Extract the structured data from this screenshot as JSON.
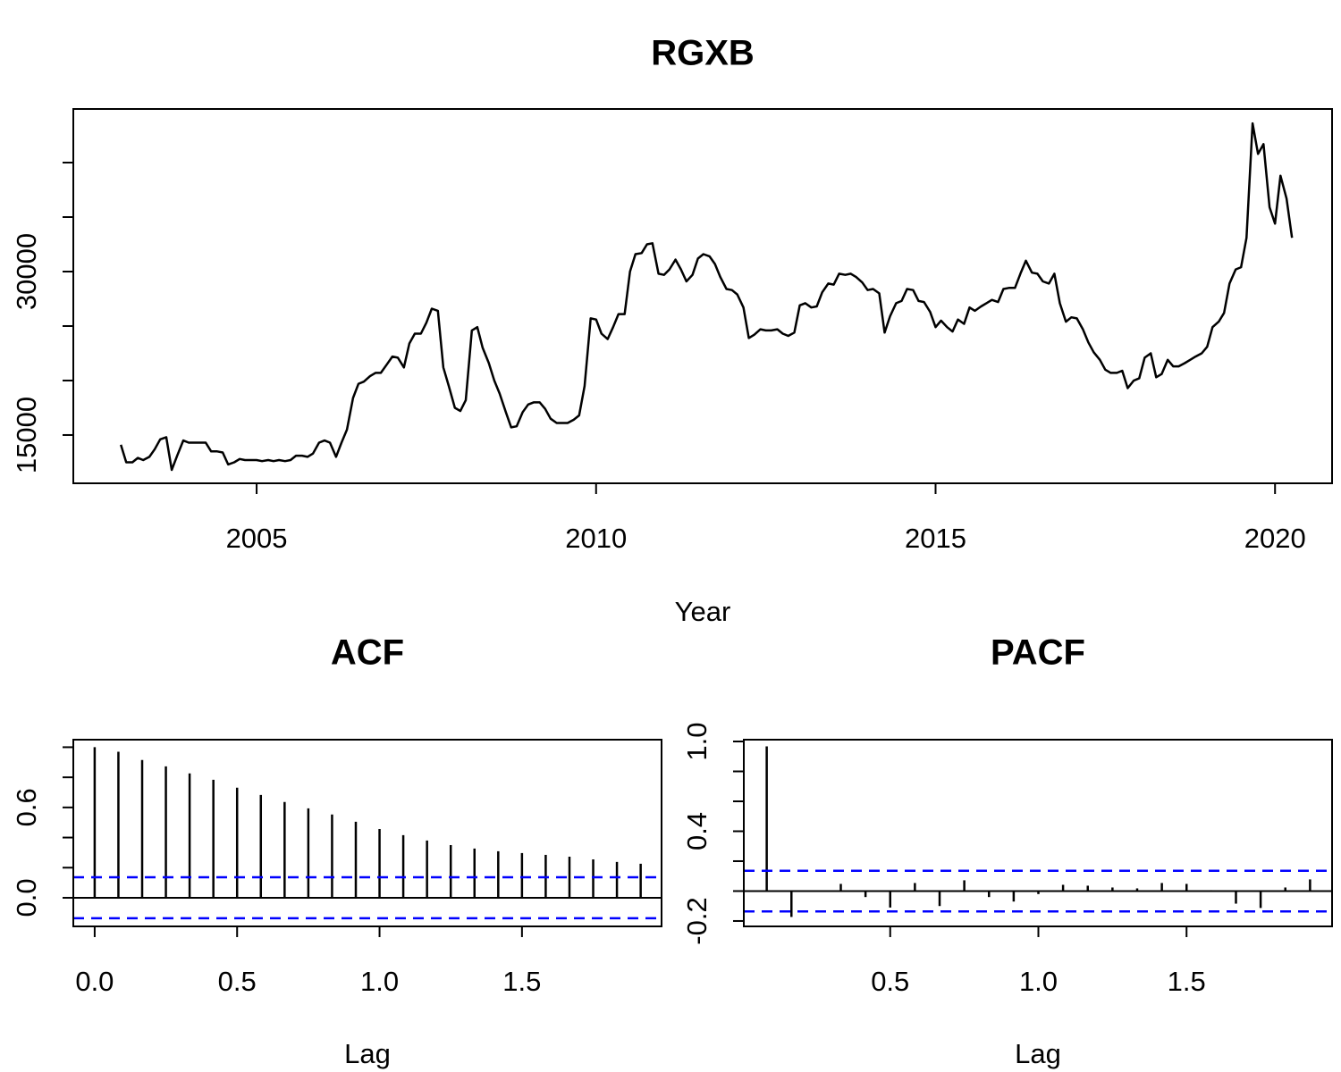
{
  "chart_data": [
    {
      "type": "line",
      "title": "RGXB",
      "xlabel": "Year",
      "color": "#000000",
      "xlim": [
        2002.3,
        2020.84
      ],
      "xticks": [
        2005,
        2010,
        2015,
        2020
      ],
      "ylim": [
        10570,
        44920
      ],
      "yticks": [
        15000,
        30000
      ],
      "yminor_ticks": [
        20000,
        25000,
        35000,
        40000
      ],
      "x": [
        2003,
        2003.08,
        2003.17,
        2003.25,
        2003.33,
        2003.42,
        2003.5,
        2003.58,
        2003.67,
        2003.75,
        2003.83,
        2003.92,
        2004,
        2004.08,
        2004.17,
        2004.25,
        2004.33,
        2004.42,
        2004.5,
        2004.58,
        2004.67,
        2004.75,
        2004.83,
        2004.92,
        2005,
        2005.08,
        2005.17,
        2005.25,
        2005.33,
        2005.42,
        2005.5,
        2005.58,
        2005.67,
        2005.75,
        2005.83,
        2005.92,
        2006,
        2006.08,
        2006.17,
        2006.25,
        2006.33,
        2006.42,
        2006.5,
        2006.58,
        2006.67,
        2006.75,
        2006.83,
        2006.92,
        2007,
        2007.08,
        2007.17,
        2007.25,
        2007.33,
        2007.42,
        2007.5,
        2007.58,
        2007.67,
        2007.75,
        2007.83,
        2007.92,
        2008,
        2008.08,
        2008.17,
        2008.25,
        2008.33,
        2008.42,
        2008.5,
        2008.58,
        2008.67,
        2008.75,
        2008.83,
        2008.92,
        2009,
        2009.08,
        2009.17,
        2009.25,
        2009.33,
        2009.42,
        2009.5,
        2009.58,
        2009.67,
        2009.75,
        2009.83,
        2009.92,
        2010,
        2010.08,
        2010.17,
        2010.25,
        2010.33,
        2010.42,
        2010.5,
        2010.58,
        2010.67,
        2010.75,
        2010.83,
        2010.92,
        2011,
        2011.08,
        2011.17,
        2011.25,
        2011.33,
        2011.42,
        2011.5,
        2011.58,
        2011.67,
        2011.75,
        2011.83,
        2011.92,
        2012,
        2012.08,
        2012.17,
        2012.25,
        2012.33,
        2012.42,
        2012.5,
        2012.58,
        2012.67,
        2012.75,
        2012.83,
        2012.92,
        2013,
        2013.08,
        2013.17,
        2013.25,
        2013.33,
        2013.42,
        2013.5,
        2013.58,
        2013.67,
        2013.75,
        2013.83,
        2013.92,
        2014,
        2014.08,
        2014.17,
        2014.25,
        2014.33,
        2014.42,
        2014.5,
        2014.58,
        2014.67,
        2014.75,
        2014.83,
        2014.92,
        2015,
        2015.08,
        2015.17,
        2015.25,
        2015.33,
        2015.42,
        2015.5,
        2015.58,
        2015.67,
        2015.75,
        2015.83,
        2015.92,
        2016,
        2016.08,
        2016.17,
        2016.25,
        2016.33,
        2016.42,
        2016.5,
        2016.58,
        2016.67,
        2016.75,
        2016.83,
        2016.92,
        2017,
        2017.08,
        2017.17,
        2017.25,
        2017.33,
        2017.42,
        2017.5,
        2017.58,
        2017.67,
        2017.75,
        2017.83,
        2017.92,
        2018,
        2018.08,
        2018.17,
        2018.25,
        2018.33,
        2018.42,
        2018.5,
        2018.58,
        2018.67,
        2018.75,
        2018.83,
        2018.92,
        2019,
        2019.08,
        2019.17,
        2019.25,
        2019.33,
        2019.42,
        2019.5,
        2019.58,
        2019.67,
        2019.75,
        2019.83,
        2019.92,
        2020,
        2020.08,
        2020.17,
        2020.25
      ],
      "values": [
        14100,
        12500,
        12500,
        12900,
        12700,
        13000,
        13700,
        14600,
        14800,
        11800,
        13100,
        14500,
        14300,
        14300,
        14300,
        14300,
        13500,
        13500,
        13400,
        12300,
        12500,
        12800,
        12700,
        12700,
        12700,
        12600,
        12700,
        12600,
        12700,
        12600,
        12700,
        13100,
        13100,
        13000,
        13300,
        14300,
        14500,
        14300,
        13000,
        14300,
        15500,
        18400,
        19700,
        19900,
        20400,
        20700,
        20700,
        21500,
        22200,
        22100,
        21200,
        23400,
        24300,
        24300,
        25300,
        26600,
        26400,
        21200,
        19500,
        17500,
        17200,
        18200,
        24600,
        24900,
        23000,
        21600,
        20000,
        18800,
        17100,
        15700,
        15800,
        17100,
        17800,
        18000,
        18000,
        17400,
        16500,
        16100,
        16100,
        16100,
        16400,
        16800,
        19500,
        25700,
        25600,
        24300,
        23800,
        24900,
        26100,
        26100,
        30000,
        31600,
        31700,
        32500,
        32600,
        29800,
        29700,
        30200,
        31100,
        30200,
        29100,
        29700,
        31200,
        31600,
        31400,
        30700,
        29500,
        28400,
        28300,
        27900,
        26700,
        23900,
        24200,
        24700,
        24600,
        24600,
        24700,
        24300,
        24100,
        24400,
        26900,
        27100,
        26700,
        26800,
        28100,
        28900,
        28800,
        29800,
        29700,
        29800,
        29500,
        29000,
        28300,
        28400,
        28000,
        24400,
        25900,
        27100,
        27300,
        28400,
        28300,
        27300,
        27200,
        26300,
        24900,
        25500,
        24900,
        24500,
        25600,
        25200,
        26700,
        26400,
        26800,
        27100,
        27400,
        27200,
        28400,
        28500,
        28500,
        29800,
        31000,
        29900,
        29800,
        29100,
        28900,
        29800,
        27100,
        25400,
        25800,
        25700,
        24700,
        23500,
        22600,
        21900,
        21000,
        20700,
        20700,
        20900,
        19300,
        20000,
        20200,
        22100,
        22500,
        20300,
        20600,
        21900,
        21300,
        21300,
        21600,
        21900,
        22200,
        22500,
        23100,
        24900,
        25400,
        26200,
        28900,
        30200,
        30400,
        33100,
        43600,
        40800,
        41700,
        35900,
        34400,
        38800,
        36700,
        33100
      ]
    },
    {
      "type": "acf",
      "title": "ACF",
      "xlabel": "Lag",
      "color": "#000000",
      "ci": 0.136,
      "ci_color": "#0000ff",
      "xlim": [
        -0.075,
        1.99
      ],
      "xticks": [
        {
          "value": 0,
          "label": "0.0"
        },
        0.5,
        {
          "value": 1,
          "label": "1.0"
        },
        1.5
      ],
      "ylim": [
        -0.19,
        1.05
      ],
      "yticks": [
        {
          "value": 0,
          "label": "0.0"
        },
        0.6
      ],
      "yminor_ticks": [
        0.2,
        0.4,
        0.8,
        1
      ],
      "x": [
        0,
        0.0833,
        0.1667,
        0.25,
        0.3333,
        0.4167,
        0.5,
        0.5833,
        0.6667,
        0.75,
        0.8333,
        0.9167,
        1,
        1.0833,
        1.1667,
        1.25,
        1.3333,
        1.4167,
        1.5,
        1.5833,
        1.6667,
        1.75,
        1.8333,
        1.9167
      ],
      "values": [
        1,
        0.97,
        0.915,
        0.873,
        0.826,
        0.784,
        0.731,
        0.683,
        0.636,
        0.594,
        0.553,
        0.505,
        0.457,
        0.416,
        0.38,
        0.35,
        0.327,
        0.309,
        0.297,
        0.285,
        0.273,
        0.255,
        0.238,
        0.226
      ]
    },
    {
      "type": "acf",
      "title": "PACF",
      "xlabel": "Lag",
      "color": "#000000",
      "ci": 0.136,
      "ci_color": "#0000ff",
      "xlim": [
        0.006,
        1.991
      ],
      "xticks": [
        0.5,
        {
          "value": 1,
          "label": "1.0"
        },
        1.5
      ],
      "ylim": [
        -0.236,
        1.012
      ],
      "yticks": [
        -0.2,
        0.4,
        {
          "value": 1,
          "label": "1.0"
        }
      ],
      "yminor_ticks": [
        0,
        0.2,
        0.6,
        0.8
      ],
      "x": [
        0.0833,
        0.1667,
        0.25,
        0.3333,
        0.4167,
        0.5,
        0.5833,
        0.6667,
        0.75,
        0.8333,
        0.9167,
        1,
        1.0833,
        1.1667,
        1.25,
        1.3333,
        1.4167,
        1.5,
        1.5833,
        1.6667,
        1.75,
        1.8333,
        1.9167
      ],
      "values": [
        0.967,
        -0.173,
        0.005,
        0.048,
        -0.04,
        -0.11,
        0.054,
        -0.1,
        0.072,
        -0.04,
        -0.07,
        -0.02,
        0.042,
        0.036,
        0.024,
        0.018,
        0.054,
        0.048,
        0.006,
        -0.084,
        -0.113,
        0.024,
        0.078
      ]
    }
  ]
}
